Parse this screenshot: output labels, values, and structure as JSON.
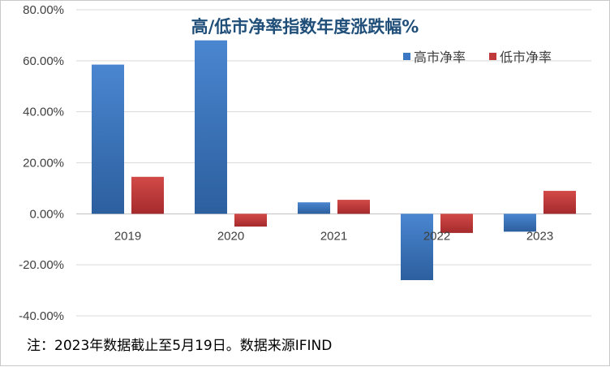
{
  "chart_data": {
    "type": "bar",
    "title": "高/低市净率指数年度涨跌幅%",
    "categories": [
      "2019",
      "2020",
      "2021",
      "2022",
      "2023"
    ],
    "series": [
      {
        "name": "高市净率",
        "values": [
          58.5,
          68.0,
          4.5,
          -26.0,
          -7.0
        ],
        "color": "#3b78c4"
      },
      {
        "name": "低市净率",
        "values": [
          14.5,
          -5.0,
          5.5,
          -7.5,
          9.0
        ],
        "color": "#c0393b"
      }
    ],
    "ylim": [
      -40,
      80
    ],
    "yticks": [
      80,
      60,
      40,
      20,
      0,
      -20,
      -40
    ],
    "ytick_labels": [
      "80.00%",
      "60.00%",
      "40.00%",
      "20.00%",
      "0.00%",
      "-20.00%",
      "-40.00%"
    ],
    "xlabel": "",
    "ylabel": "",
    "grid": true,
    "legend_position": "top-right"
  },
  "note": "注：2023年数据截止至5月19日。数据来源IFIND"
}
